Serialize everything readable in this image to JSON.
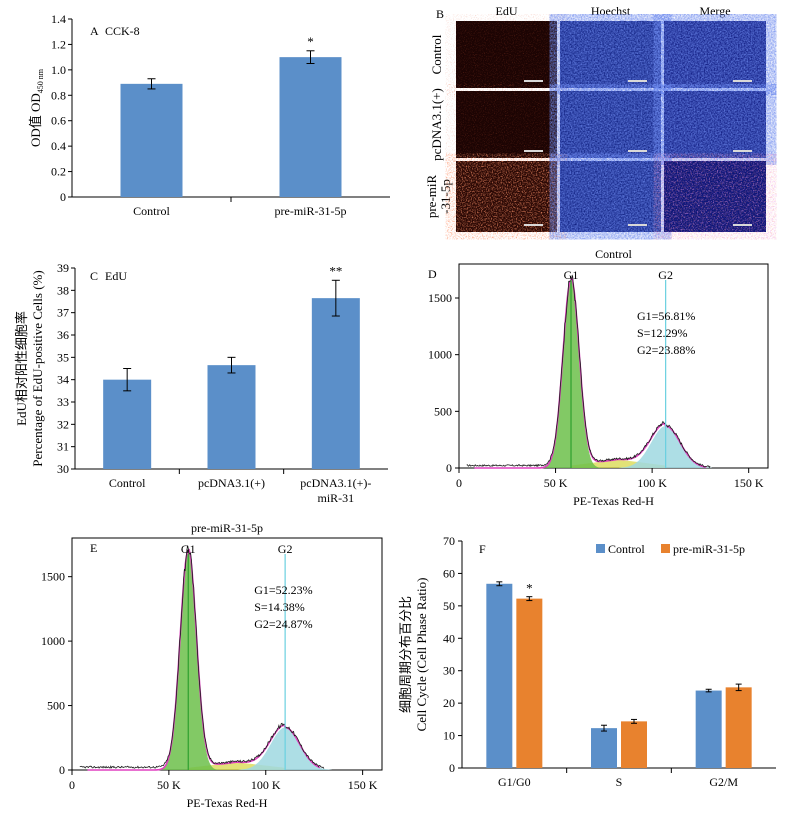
{
  "chart_data": [
    {
      "panel": "A",
      "type": "bar",
      "title": "CCK-8",
      "ylabel": "OD值 OD",
      "ylabel_sub": "450 nm",
      "categories": [
        "Control",
        "pre-miR-31-5p"
      ],
      "values": [
        0.89,
        1.1
      ],
      "errors": [
        0.04,
        0.05
      ],
      "annotations": [
        "",
        "*"
      ],
      "ylim": [
        0,
        1.4
      ],
      "yticks": [
        "0",
        "0.2",
        "0.4",
        "0.6",
        "0.8",
        "1.0",
        "1.2",
        "1.4"
      ],
      "color": "#5b8fc9"
    },
    {
      "panel": "B",
      "type": "image-grid",
      "columns": [
        "EdU",
        "Hoechst",
        "Merge"
      ],
      "rows": [
        "Control",
        "pcDNA3.1(+)",
        "pre-miR-31-5p"
      ],
      "row_label_lines": [
        [
          "Control"
        ],
        [
          "pcDNA3.1(+)"
        ],
        [
          "pre-miR",
          "-31-5p"
        ]
      ]
    },
    {
      "panel": "C",
      "type": "bar",
      "title": "EdU",
      "ylabel_lines": [
        "EdU相对阳性细胞率",
        "Percentage of EdU-positive Cells (%)"
      ],
      "categories": [
        "Control",
        "pcDNA3.1(+)",
        "pcDNA3.1(+)-miR-31"
      ],
      "category_lines": [
        [
          "Control"
        ],
        [
          "pcDNA3.1(+)"
        ],
        [
          "pcDNA3.1(+)-",
          "miR-31"
        ]
      ],
      "values": [
        34.0,
        34.65,
        37.65
      ],
      "errors": [
        0.5,
        0.35,
        0.8
      ],
      "annotations": [
        "",
        "",
        "**"
      ],
      "ylim": [
        30,
        39
      ],
      "yticks": [
        "30",
        "31",
        "32",
        "33",
        "34",
        "35",
        "36",
        "37",
        "38",
        "39"
      ],
      "color": "#5b8fc9"
    },
    {
      "panel": "D",
      "type": "histogram",
      "title": "Control",
      "xlabel": "PE-Texas Red-H",
      "xticks": [
        "0",
        "50 K",
        "100 K",
        "150 K"
      ],
      "xlim": [
        0,
        160000
      ],
      "yticks": [
        "0",
        "500",
        "1000",
        "1500"
      ],
      "ylim": [
        0,
        1800
      ],
      "peaks": [
        {
          "label": "G1",
          "position": 58000,
          "height": 1660
        },
        {
          "label": "G2",
          "position": 107000,
          "height": 370
        }
      ],
      "s_phase_level": 75,
      "stats": [
        "G1=56.81%",
        "S=12.29%",
        "G2=23.88%"
      ]
    },
    {
      "panel": "E",
      "type": "histogram",
      "title": "pre-miR-31-5p",
      "xlabel": "PE-Texas Red-H",
      "xticks": [
        "0",
        "50 K",
        "100 K",
        "150 K"
      ],
      "xlim": [
        0,
        160000
      ],
      "yticks": [
        "0",
        "500",
        "1000",
        "1500"
      ],
      "ylim": [
        0,
        1800
      ],
      "peaks": [
        {
          "label": "G1",
          "position": 60000,
          "height": 1700
        },
        {
          "label": "G2",
          "position": 110000,
          "height": 330
        }
      ],
      "s_phase_level": 60,
      "stats": [
        "G1=52.23%",
        "S=14.38%",
        "G2=24.87%"
      ]
    },
    {
      "panel": "F",
      "type": "bar",
      "ylabel_lines": [
        "细胞周期分布百分比",
        "Cell Cycle (Cell Phase Ratio)"
      ],
      "categories": [
        "G1/G0",
        "S",
        "G2/M"
      ],
      "series": [
        {
          "name": "Control",
          "values": [
            56.81,
            12.29,
            23.88
          ],
          "errors": [
            0.6,
            0.9,
            0.4
          ],
          "color": "#5b8fc9"
        },
        {
          "name": "pre-miR-31-5p",
          "values": [
            52.23,
            14.38,
            24.87
          ],
          "errors": [
            0.6,
            0.6,
            1.0
          ],
          "color": "#e8822e"
        }
      ],
      "annotations": [
        "*",
        "",
        ""
      ],
      "ylim": [
        0,
        70
      ],
      "yticks": [
        "0",
        "10",
        "20",
        "30",
        "40",
        "50",
        "60",
        "70"
      ],
      "legend": "top-right"
    }
  ]
}
